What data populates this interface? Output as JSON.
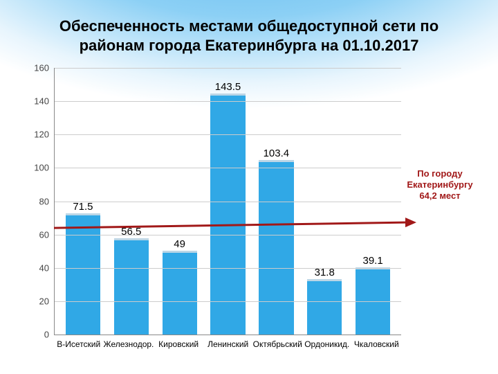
{
  "title": {
    "line1": "Обеспеченность местами общедоступной сети  по",
    "line2": "районам города Екатеринбурга на 01.10.2017",
    "fontsize": 22,
    "color": "#000000"
  },
  "chart": {
    "type": "bar",
    "categories": [
      "В-Исетский",
      "Железнодор.",
      "Кировский",
      "Ленинский",
      "Октябрьский",
      "Ордоникид.",
      "Чкаловский"
    ],
    "values": [
      71.5,
      56.5,
      49,
      143.5,
      103.4,
      31.8,
      39.1
    ],
    "value_labels": [
      "71.5",
      "56.5",
      "49",
      "143.5",
      "103.4",
      "31.8",
      "39.1"
    ],
    "bar_color": "#30a8e6",
    "bar_cap_color": "#bcd6e6",
    "ylim": [
      0,
      160
    ],
    "ytick_step": 20,
    "yticks": [
      "0",
      "20",
      "40",
      "60",
      "80",
      "100",
      "120",
      "140",
      "160"
    ],
    "grid_color": "#cccccc",
    "axis_color": "#888888",
    "label_fontsize": 13,
    "xlabel_fontsize": 12,
    "value_fontsize": 15,
    "bar_width": 0.72
  },
  "reference": {
    "value": 64.2,
    "arrow_color": "#a11818",
    "arrow_width": 3
  },
  "annotation": {
    "lines": [
      "По городу",
      "Екатеринбургу",
      "64,2 мест"
    ],
    "color": "#a11818",
    "fontsize": 13,
    "top_at_value": 100
  }
}
